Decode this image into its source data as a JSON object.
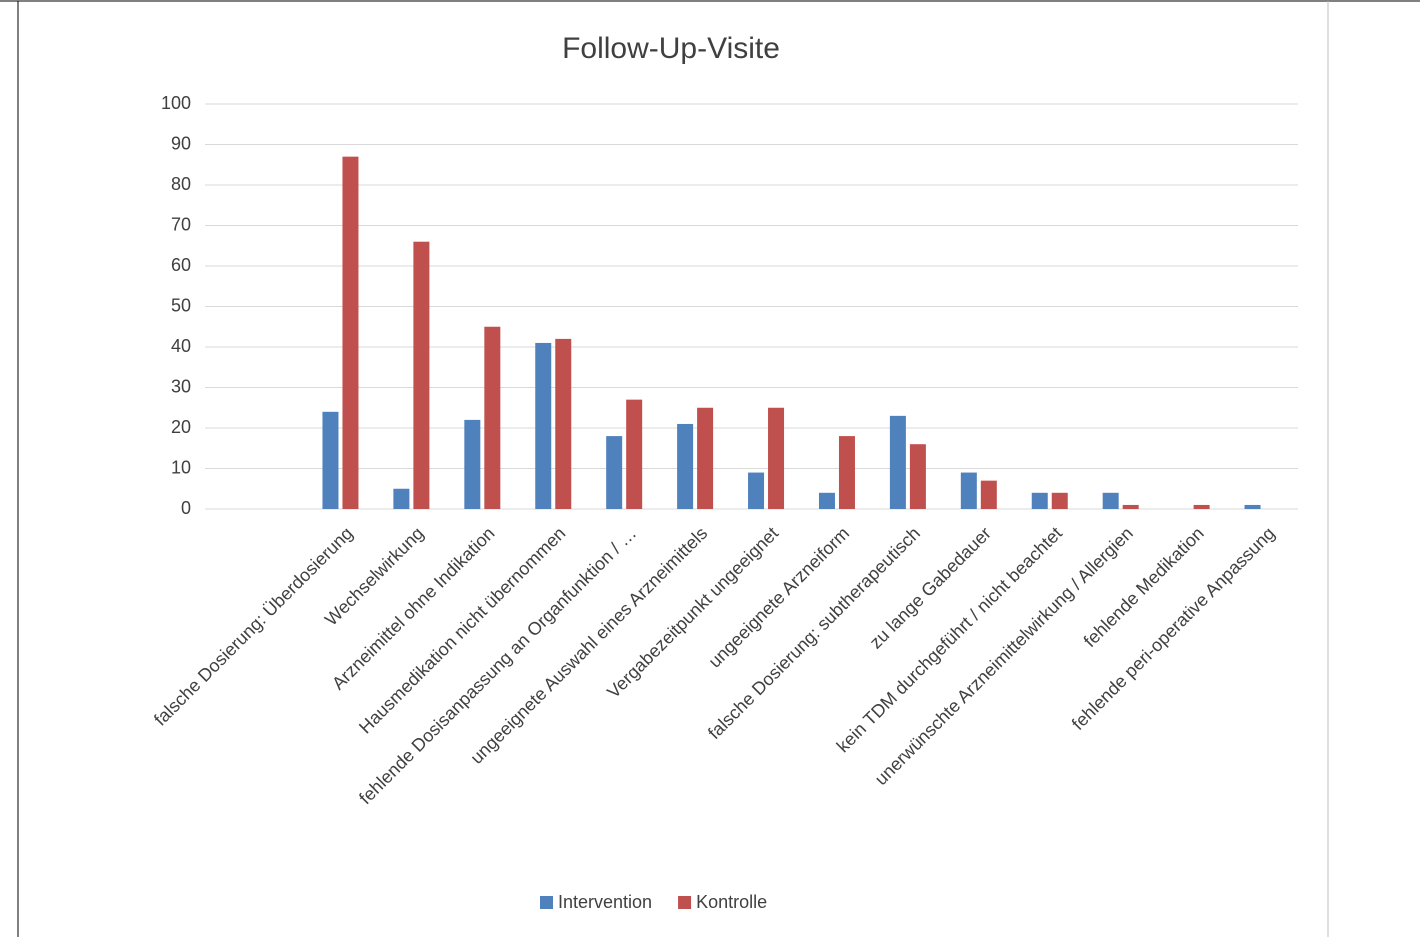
{
  "chart_data": {
    "type": "bar",
    "title": "Follow-Up-Visite",
    "categories": [
      "falsche Dosierung: Überdosierung",
      "Wechselwirkung",
      "Arzneimittel ohne Indikation",
      "Hausmedikation nicht übernommen",
      "fehlende Dosisanpassung an Organfunktion / …",
      "ungeeignete Auswahl eines Arzneimittels",
      "Vergabezeitpunkt ungeeignet",
      "ungeeignete Arzneiform",
      "falsche Dosierung: subtherapeutisch",
      "zu lange Gabedauer",
      "kein TDM durchgeführt / nicht beachtet",
      "unerwünschte Arzneimittelwirkung / Allergien",
      "fehlende Medikation",
      "fehlende peri-operative Anpassung"
    ],
    "series": [
      {
        "name": "Intervention",
        "color": "#4f81bd",
        "values": [
          24,
          5,
          22,
          41,
          18,
          21,
          9,
          4,
          23,
          9,
          4,
          4,
          0,
          1
        ]
      },
      {
        "name": "Kontrolle",
        "color": "#c0504d",
        "values": [
          87,
          66,
          45,
          42,
          27,
          25,
          25,
          18,
          16,
          7,
          4,
          1,
          1,
          0
        ]
      }
    ],
    "ylim": [
      0,
      100
    ],
    "yticks": [
      0,
      10,
      20,
      30,
      40,
      50,
      60,
      70,
      80,
      90,
      100
    ],
    "grid": true,
    "legend": "bottom"
  }
}
